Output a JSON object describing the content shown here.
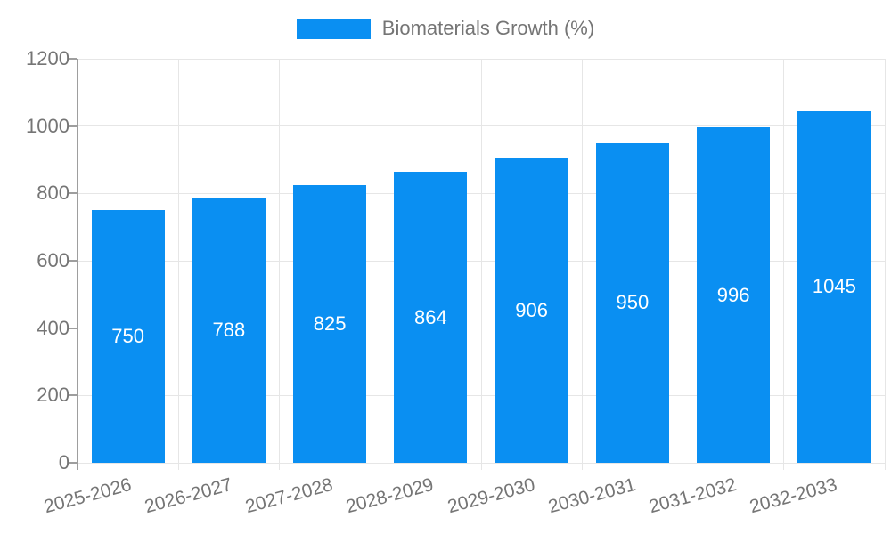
{
  "legend": {
    "label": "Biomaterials Growth (%)"
  },
  "chart_data": {
    "type": "bar",
    "title": "",
    "series_name": "Biomaterials Growth (%)",
    "categories": [
      "2025-2026",
      "2026-2027",
      "2027-2028",
      "2028-2029",
      "2029-2030",
      "2030-2031",
      "2031-2032",
      "2032-2033"
    ],
    "values": [
      750,
      788,
      825,
      864,
      906,
      950,
      996,
      1045
    ],
    "value_labels": [
      "750",
      "788",
      "825",
      "864",
      "906",
      "950",
      "996",
      "1045"
    ],
    "xlabel": "",
    "ylabel": "",
    "ylim": [
      0,
      1200
    ],
    "yticks": [
      0,
      200,
      400,
      600,
      800,
      1000,
      1200
    ],
    "grid": true,
    "legend_position": "top-center",
    "colors": {
      "bar": "#0a8ff2",
      "value_label": "#ffffff",
      "tick_label": "#757575",
      "grid": "#e6e6e6",
      "axis": "#9e9e9e",
      "background": "#ffffff"
    }
  }
}
